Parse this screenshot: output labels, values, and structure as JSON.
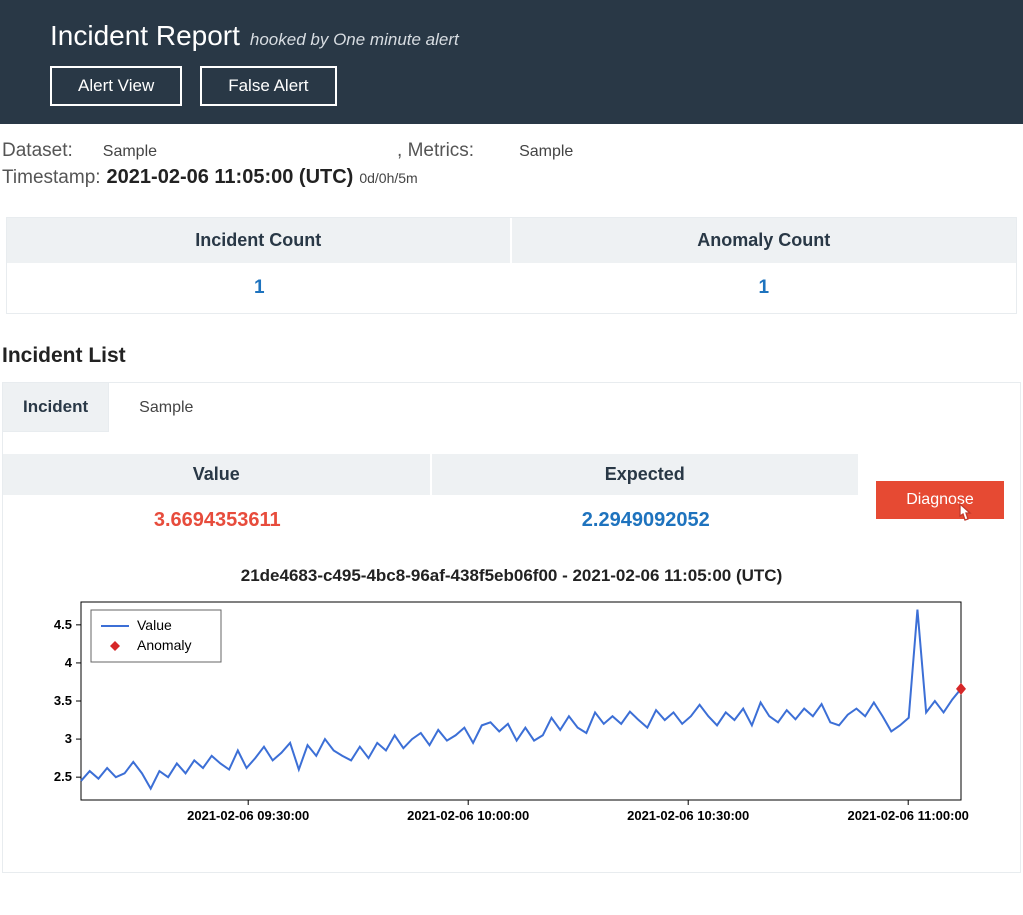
{
  "header": {
    "title": "Incident Report",
    "subtitle": "hooked by One minute alert",
    "alert_view_btn": "Alert View",
    "false_alert_btn": "False Alert"
  },
  "meta": {
    "dataset_label": "Dataset:",
    "dataset_value": "Sample",
    "metrics_label": ", Metrics:",
    "metrics_value": "Sample",
    "timestamp_label": "Timestamp:",
    "timestamp_value": "2021-02-06 11:05:00 (UTC)",
    "timestamp_offset": "0d/0h/5m"
  },
  "counts": {
    "incident_hdr": "Incident Count",
    "incident_val": "1",
    "anomaly_hdr": "Anomaly Count",
    "anomaly_val": "1"
  },
  "incident_list": {
    "section_title": "Incident List",
    "tab_label": "Incident",
    "tab_extra": "Sample",
    "value_hdr": "Value",
    "expected_hdr": "Expected",
    "value_num": "3.6694353611",
    "expected_num": "2.2949092052",
    "diagnose_btn": "Diagnose"
  },
  "chart": {
    "title": "21de4683-c495-4bc8-96af-438f5eb06f00 - 2021-02-06 11:05:00 (UTC)",
    "type": "line",
    "legend": {
      "value": "Value",
      "anomaly": "Anomaly"
    },
    "y_ticks": [
      2.5,
      3,
      3.5,
      4,
      4.5
    ],
    "ylim": [
      2.2,
      4.8
    ],
    "x_tick_labels": [
      "2021-02-06 09:30:00",
      "2021-02-06 10:00:00",
      "2021-02-06 10:30:00",
      "2021-02-06 11:00:00"
    ],
    "x_tick_positions": [
      0.19,
      0.44,
      0.69,
      0.94
    ],
    "line_color": "#3c6fd6",
    "anomaly_color": "#d62728",
    "grid_color": "#dcdcdc",
    "axis_color": "#000000",
    "tick_font_size": 12,
    "line_width": 2,
    "series": [
      2.45,
      2.58,
      2.48,
      2.62,
      2.5,
      2.55,
      2.7,
      2.55,
      2.35,
      2.58,
      2.5,
      2.68,
      2.55,
      2.72,
      2.62,
      2.78,
      2.68,
      2.6,
      2.85,
      2.62,
      2.75,
      2.9,
      2.72,
      2.82,
      2.95,
      2.6,
      2.92,
      2.78,
      3.0,
      2.85,
      2.78,
      2.72,
      2.9,
      2.75,
      2.95,
      2.85,
      3.05,
      2.88,
      3.0,
      3.08,
      2.92,
      3.12,
      2.98,
      3.05,
      3.15,
      2.95,
      3.18,
      3.22,
      3.1,
      3.2,
      2.98,
      3.15,
      2.98,
      3.05,
      3.28,
      3.12,
      3.3,
      3.15,
      3.08,
      3.35,
      3.2,
      3.3,
      3.2,
      3.36,
      3.25,
      3.15,
      3.38,
      3.25,
      3.35,
      3.2,
      3.3,
      3.45,
      3.3,
      3.18,
      3.35,
      3.25,
      3.4,
      3.18,
      3.48,
      3.3,
      3.22,
      3.38,
      3.26,
      3.4,
      3.3,
      3.46,
      3.22,
      3.18,
      3.32,
      3.4,
      3.3,
      3.48,
      3.3,
      3.1,
      3.18,
      3.28,
      4.7,
      3.35,
      3.5,
      3.35,
      3.52,
      3.66
    ],
    "anomaly_point": {
      "index": 101,
      "value": 3.66
    }
  }
}
